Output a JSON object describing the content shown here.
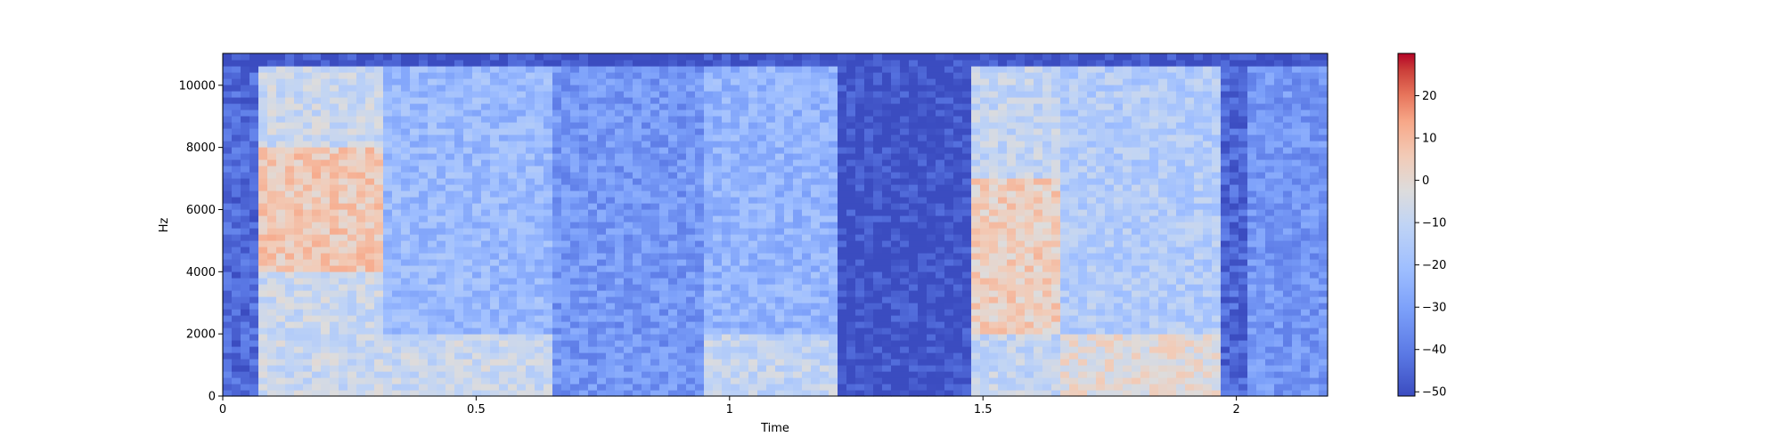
{
  "chart_data": {
    "type": "heatmap",
    "subtype": "spectrogram",
    "title": "",
    "xlabel": "Time",
    "ylabel": "Hz",
    "xlim": [
      0,
      2.18
    ],
    "ylim": [
      0,
      11025
    ],
    "x_ticks": [
      0,
      0.5,
      1,
      1.5,
      2
    ],
    "x_tick_labels": [
      "0",
      "0.5",
      "1",
      "1.5",
      "2"
    ],
    "y_ticks": [
      0,
      2000,
      4000,
      6000,
      8000,
      10000
    ],
    "y_tick_labels": [
      "0",
      "2000",
      "4000",
      "6000",
      "8000",
      "10000"
    ],
    "grid": false,
    "colormap": "coolwarm",
    "colorbar": {
      "label": "",
      "range": [
        -51,
        30
      ],
      "ticks": [
        -50,
        -40,
        -30,
        -20,
        -10,
        0,
        10,
        20
      ],
      "tick_labels": [
        "−50",
        "−40",
        "−30",
        "−20",
        "−10",
        "0",
        "10",
        "20"
      ],
      "low_color": "#3b4cc0",
      "mid_color": "#dddddd",
      "high_color": "#b40426"
    },
    "time_segments": [
      {
        "start": 0.0,
        "end": 0.07,
        "level_db": -44
      },
      {
        "start": 0.07,
        "end": 0.32,
        "level_db": -8,
        "peak_band_hz": [
          4000,
          8000
        ]
      },
      {
        "start": 0.32,
        "end": 0.65,
        "level_db": -22,
        "peak_band_hz": [
          0,
          2000
        ]
      },
      {
        "start": 0.65,
        "end": 0.95,
        "level_db": -33
      },
      {
        "start": 0.95,
        "end": 1.22,
        "level_db": -24,
        "peak_band_hz": [
          0,
          2000
        ]
      },
      {
        "start": 1.22,
        "end": 1.47,
        "level_db": -50
      },
      {
        "start": 1.47,
        "end": 1.65,
        "level_db": -10,
        "peak_band_hz": [
          2000,
          7000
        ]
      },
      {
        "start": 1.65,
        "end": 1.97,
        "level_db": -15,
        "peak_band_hz": [
          0,
          2000
        ]
      },
      {
        "start": 1.97,
        "end": 2.02,
        "level_db": -45
      },
      {
        "start": 2.02,
        "end": 2.18,
        "level_db": -33
      }
    ]
  }
}
